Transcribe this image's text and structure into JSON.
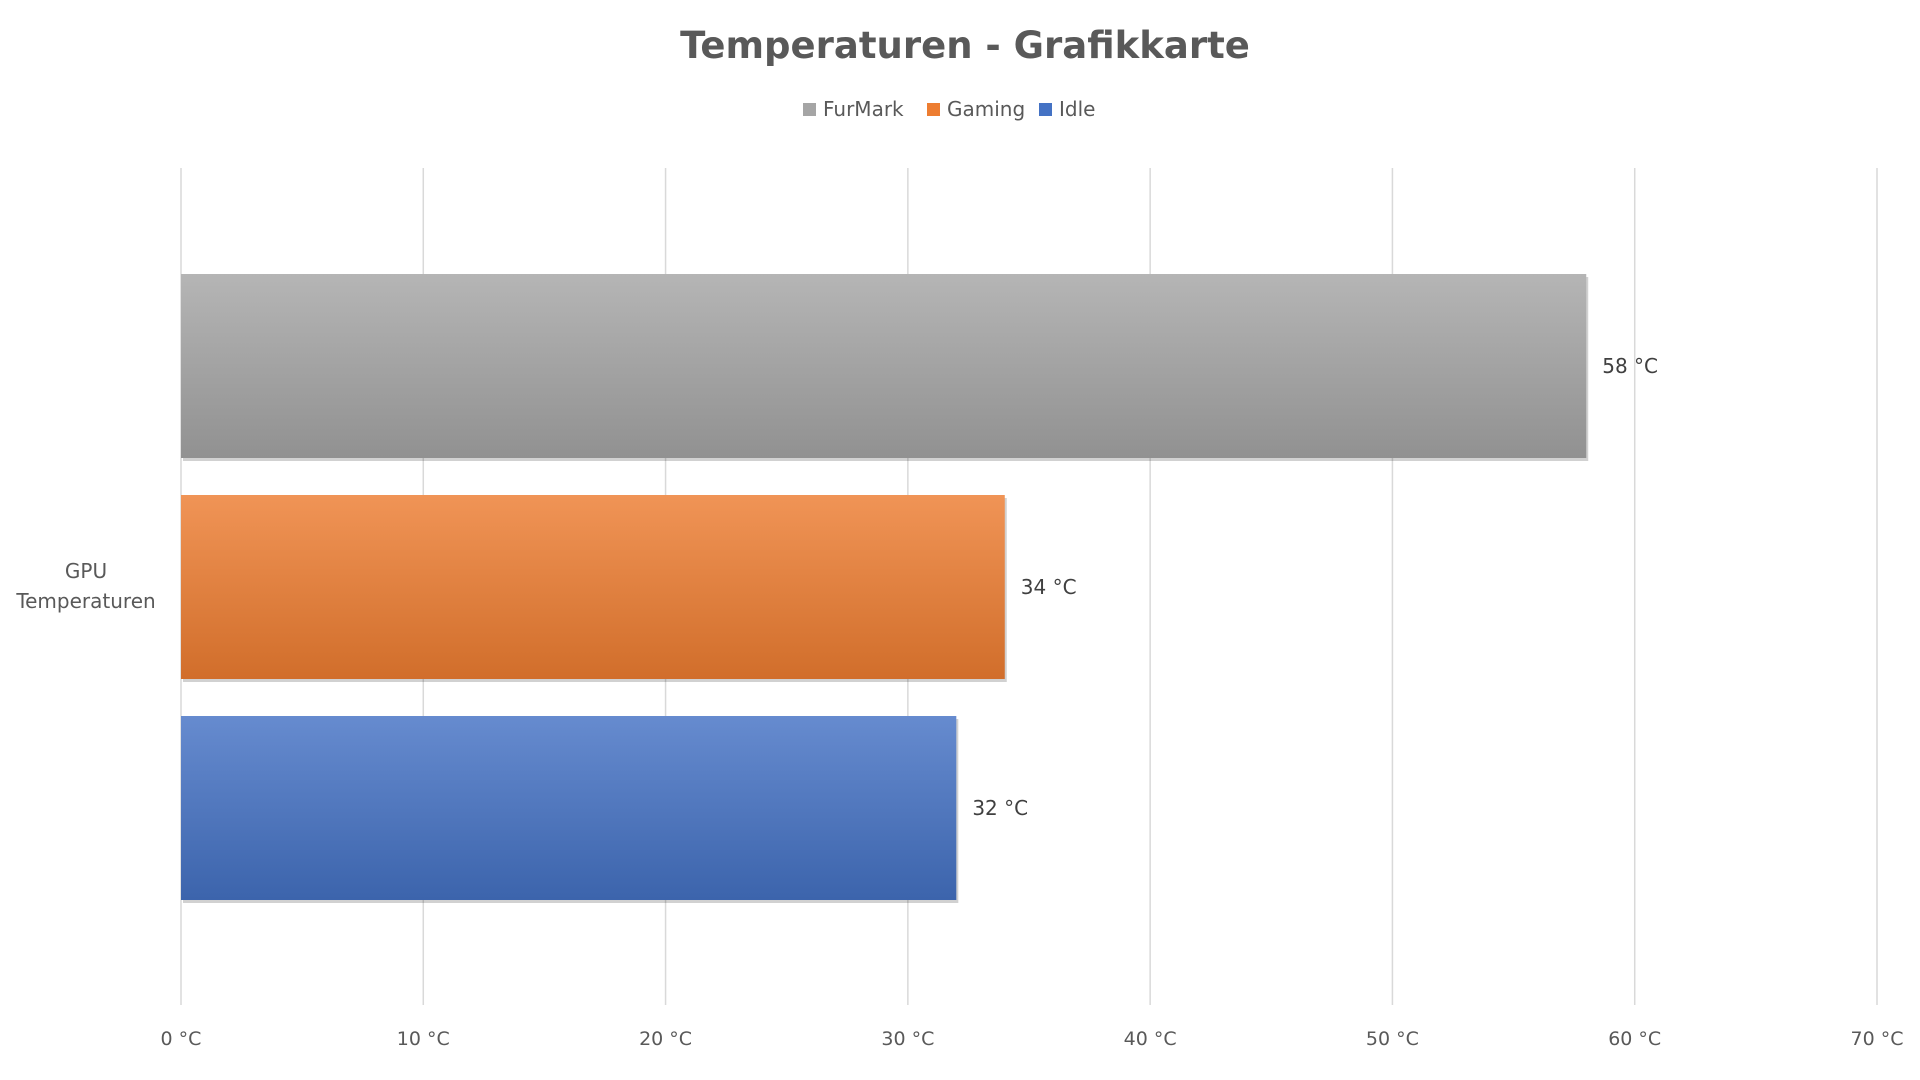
{
  "chart_data": {
    "type": "bar",
    "orientation": "horizontal",
    "title": "Temperaturen - Grafikkarte",
    "categories": [
      "GPU Temperaturen"
    ],
    "series": [
      {
        "name": "FurMark",
        "values": [
          58
        ],
        "label": "58 °C",
        "color": "#a5a5a5"
      },
      {
        "name": "Gaming",
        "values": [
          34
        ],
        "label": "34 °C",
        "color": "#ed7d31"
      },
      {
        "name": "Idle",
        "values": [
          32
        ],
        "label": "32 °C",
        "color": "#4472c4"
      }
    ],
    "xlim": [
      0,
      70
    ],
    "xticks": [
      {
        "value": 0,
        "label": "0 °C"
      },
      {
        "value": 10,
        "label": "10 °C"
      },
      {
        "value": 20,
        "label": "20 °C"
      },
      {
        "value": 30,
        "label": "30 °C"
      },
      {
        "value": 40,
        "label": "40 °C"
      },
      {
        "value": 50,
        "label": "50 °C"
      },
      {
        "value": 60,
        "label": "60 °C"
      },
      {
        "value": 70,
        "label": "70 °C"
      }
    ],
    "grid": true,
    "legend_position": "top-center"
  }
}
